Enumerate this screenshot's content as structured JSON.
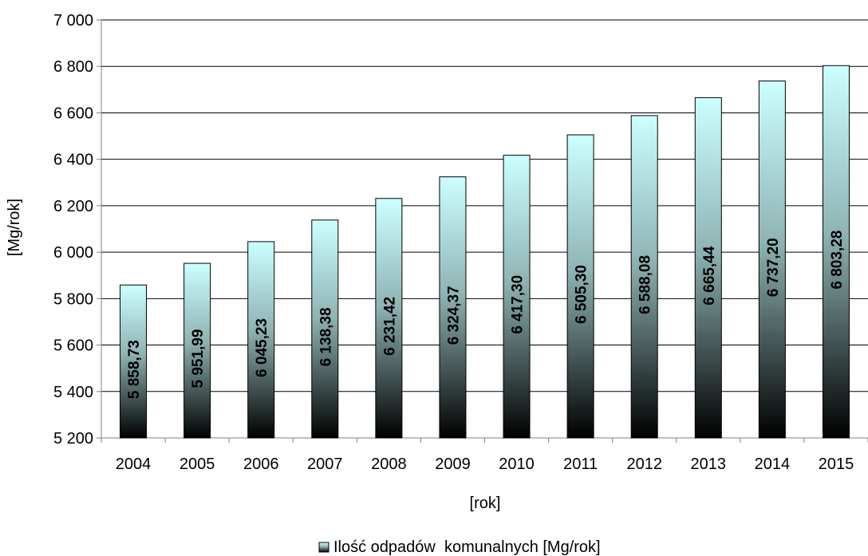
{
  "chart_data": {
    "type": "bar",
    "title": "",
    "xlabel": "[rok]",
    "ylabel": "[Mg/rok]",
    "ylim": [
      5200,
      7000
    ],
    "yticks": [
      5200,
      5400,
      5600,
      5800,
      6000,
      6200,
      6400,
      6600,
      6800,
      7000
    ],
    "ytick_labels": [
      "5 200",
      "5 400",
      "5 600",
      "5 800",
      "6 000",
      "6 200",
      "6 400",
      "6 600",
      "6 800",
      "7 000"
    ],
    "grid": true,
    "legend_position": "bottom",
    "categories": [
      "2004",
      "2005",
      "2006",
      "2007",
      "2008",
      "2009",
      "2010",
      "2011",
      "2012",
      "2013",
      "2014",
      "2015"
    ],
    "series": [
      {
        "name": "Ilość odpadów  komunalnych [Mg/rok]",
        "values": [
          5858.73,
          5951.99,
          6045.23,
          6138.38,
          6231.42,
          6324.37,
          6417.3,
          6505.3,
          6588.08,
          6665.44,
          6737.2,
          6803.28
        ],
        "labels": [
          "5 858,73",
          "5 951,99",
          "6 045,23",
          "6 138,38",
          "6 231,42",
          "6 324,37",
          "6 417,30",
          "6 505,30",
          "6 588,08",
          "6 665,44",
          "6 737,20",
          "6 803,28"
        ]
      }
    ],
    "colors": {
      "bar_top": "#ccffff",
      "bar_bottom": "#000000",
      "grid": "#000000",
      "axis": "#808080"
    }
  }
}
